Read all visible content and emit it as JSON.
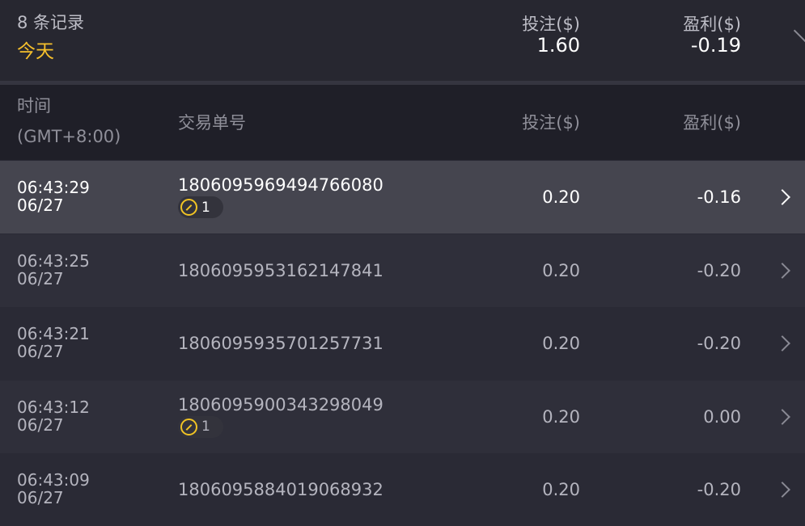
{
  "summary": {
    "count": "8 条记录",
    "period": "今天",
    "stake_label": "投注($)",
    "stake_value": "1.60",
    "profit_label": "盈利($)",
    "profit_value": "-0.19"
  },
  "columns": {
    "time": "时间",
    "timezone": "(GMT+8:00)",
    "id": "交易单号",
    "stake": "投注($)",
    "profit": "盈利($)"
  },
  "rows": [
    {
      "time": "06:43:29",
      "date": "06/27",
      "id": "1806095969494766080",
      "badge": "1",
      "stake": "0.20",
      "profit": "-0.16"
    },
    {
      "time": "06:43:25",
      "date": "06/27",
      "id": "1806095953162147841",
      "stake": "0.20",
      "profit": "-0.20"
    },
    {
      "time": "06:43:21",
      "date": "06/27",
      "id": "1806095935701257731",
      "stake": "0.20",
      "profit": "-0.20"
    },
    {
      "time": "06:43:12",
      "date": "06/27",
      "id": "1806095900343298049",
      "badge": "1",
      "stake": "0.20",
      "profit": "0.00"
    },
    {
      "time": "06:43:09",
      "date": "06/27",
      "id": "1806095884019068932",
      "stake": "0.20",
      "profit": "-0.20"
    }
  ],
  "colors": {
    "accent": "#f6c02c",
    "active_row": "#45454f"
  }
}
